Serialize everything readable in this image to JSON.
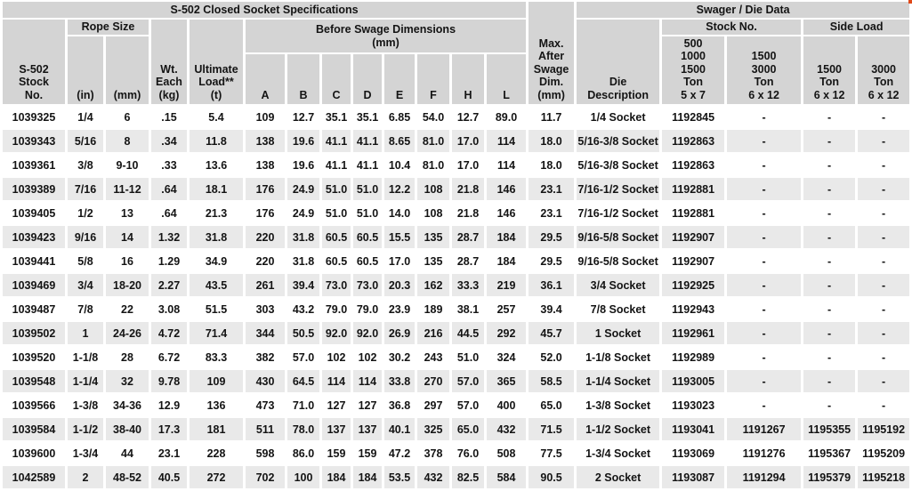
{
  "titles": {
    "left": "S-502 Closed Socket Specifications",
    "right": "Swager / Die Data"
  },
  "colors": {
    "header_bg": "#d4d4d4",
    "row_alt_bg": "#e9e9e9",
    "row_bg": "#ffffff",
    "text": "#141414",
    "corner_mark": "#e04818"
  },
  "headers": {
    "stock_no": "S-502\nStock\nNo.",
    "rope_size": "Rope Size",
    "rope_in": "(in)",
    "rope_mm": "(mm)",
    "wt_each": "Wt.\nEach\n(kg)",
    "ultimate_load": "Ultimate\nLoad**\n(t)",
    "before_swage": "Before Swage Dimensions\n(mm)",
    "dims": [
      "A",
      "B",
      "C",
      "D",
      "E",
      "F",
      "H",
      "L"
    ],
    "max_after_swage": "Max.\nAfter\nSwage\nDim.\n(mm)",
    "die_description": "Die\nDescription",
    "stock_no_group": "Stock No.",
    "side_load_group": "Side Load",
    "stock_col_1": "500\n1000\n1500\nTon\n5 x 7",
    "stock_col_2": "1500\n3000\nTon\n6 x 12",
    "side_col_1": "1500\nTon\n6 x 12",
    "side_col_2": "3000\nTon\n6 x 12"
  },
  "rows": [
    [
      "1039325",
      "1/4",
      "6",
      ".15",
      "5.4",
      "109",
      "12.7",
      "35.1",
      "35.1",
      "6.85",
      "54.0",
      "12.7",
      "89.0",
      "11.7",
      "1/4 Socket",
      "1192845",
      "-",
      "-",
      "-"
    ],
    [
      "1039343",
      "5/16",
      "8",
      ".34",
      "11.8",
      "138",
      "19.6",
      "41.1",
      "41.1",
      "8.65",
      "81.0",
      "17.0",
      "114",
      "18.0",
      "5/16-3/8 Socket",
      "1192863",
      "-",
      "-",
      "-"
    ],
    [
      "1039361",
      "3/8",
      "9-10",
      ".33",
      "13.6",
      "138",
      "19.6",
      "41.1",
      "41.1",
      "10.4",
      "81.0",
      "17.0",
      "114",
      "18.0",
      "5/16-3/8 Socket",
      "1192863",
      "-",
      "-",
      "-"
    ],
    [
      "1039389",
      "7/16",
      "11-12",
      ".64",
      "18.1",
      "176",
      "24.9",
      "51.0",
      "51.0",
      "12.2",
      "108",
      "21.8",
      "146",
      "23.1",
      "7/16-1/2 Socket",
      "1192881",
      "-",
      "-",
      "-"
    ],
    [
      "1039405",
      "1/2",
      "13",
      ".64",
      "21.3",
      "176",
      "24.9",
      "51.0",
      "51.0",
      "14.0",
      "108",
      "21.8",
      "146",
      "23.1",
      "7/16-1/2 Socket",
      "1192881",
      "-",
      "-",
      "-"
    ],
    [
      "1039423",
      "9/16",
      "14",
      "1.32",
      "31.8",
      "220",
      "31.8",
      "60.5",
      "60.5",
      "15.5",
      "135",
      "28.7",
      "184",
      "29.5",
      "9/16-5/8 Socket",
      "1192907",
      "-",
      "-",
      "-"
    ],
    [
      "1039441",
      "5/8",
      "16",
      "1.29",
      "34.9",
      "220",
      "31.8",
      "60.5",
      "60.5",
      "17.0",
      "135",
      "28.7",
      "184",
      "29.5",
      "9/16-5/8 Socket",
      "1192907",
      "-",
      "-",
      "-"
    ],
    [
      "1039469",
      "3/4",
      "18-20",
      "2.27",
      "43.5",
      "261",
      "39.4",
      "73.0",
      "73.0",
      "20.3",
      "162",
      "33.3",
      "219",
      "36.1",
      "3/4 Socket",
      "1192925",
      "-",
      "-",
      "-"
    ],
    [
      "1039487",
      "7/8",
      "22",
      "3.08",
      "51.5",
      "303",
      "43.2",
      "79.0",
      "79.0",
      "23.9",
      "189",
      "38.1",
      "257",
      "39.4",
      "7/8 Socket",
      "1192943",
      "-",
      "-",
      "-"
    ],
    [
      "1039502",
      "1",
      "24-26",
      "4.72",
      "71.4",
      "344",
      "50.5",
      "92.0",
      "92.0",
      "26.9",
      "216",
      "44.5",
      "292",
      "45.7",
      "1 Socket",
      "1192961",
      "-",
      "-",
      "-"
    ],
    [
      "1039520",
      "1-1/8",
      "28",
      "6.72",
      "83.3",
      "382",
      "57.0",
      "102",
      "102",
      "30.2",
      "243",
      "51.0",
      "324",
      "52.0",
      "1-1/8 Socket",
      "1192989",
      "-",
      "-",
      "-"
    ],
    [
      "1039548",
      "1-1/4",
      "32",
      "9.78",
      "109",
      "430",
      "64.5",
      "114",
      "114",
      "33.8",
      "270",
      "57.0",
      "365",
      "58.5",
      "1-1/4 Socket",
      "1193005",
      "-",
      "-",
      "-"
    ],
    [
      "1039566",
      "1-3/8",
      "34-36",
      "12.9",
      "136",
      "473",
      "71.0",
      "127",
      "127",
      "36.8",
      "297",
      "57.0",
      "400",
      "65.0",
      "1-3/8 Socket",
      "1193023",
      "-",
      "-",
      "-"
    ],
    [
      "1039584",
      "1-1/2",
      "38-40",
      "17.3",
      "181",
      "511",
      "78.0",
      "137",
      "137",
      "40.1",
      "325",
      "65.0",
      "432",
      "71.5",
      "1-1/2 Socket",
      "1193041",
      "1191267",
      "1195355",
      "1195192"
    ],
    [
      "1039600",
      "1-3/4",
      "44",
      "23.1",
      "228",
      "598",
      "86.0",
      "159",
      "159",
      "47.2",
      "378",
      "76.0",
      "508",
      "77.5",
      "1-3/4 Socket",
      "1193069",
      "1191276",
      "1195367",
      "1195209"
    ],
    [
      "1042589",
      "2",
      "48-52",
      "40.5",
      "272",
      "702",
      "100",
      "184",
      "184",
      "53.5",
      "432",
      "82.5",
      "584",
      "90.5",
      "2 Socket",
      "1193087",
      "1191294",
      "1195379",
      "1195218"
    ]
  ]
}
